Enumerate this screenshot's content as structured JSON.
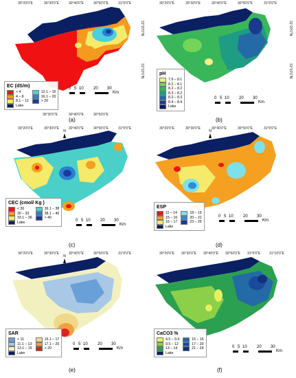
{
  "colors": {
    "lake": "#0b1f63",
    "mapblue": "#1a3a8c"
  },
  "panels": [
    {
      "id": "ec",
      "label": "(a)",
      "coords_top": [
        "30°20'0\"E",
        "30°30'0\"E",
        "30°40'0\"E",
        "30°50'0\"E",
        "31°0'0\"E"
      ],
      "coords_bottom": [
        "30°30'0\"E",
        "30°40'0\"E",
        "30°50'0\"E"
      ],
      "coords_right": [
        "31°20'0\"N",
        "31°10'0\"N"
      ],
      "legend": {
        "title": "EC (dS/m)",
        "items": [
          {
            "label": "< 4",
            "color": "#f01212"
          },
          {
            "label": "12.1 – 16",
            "color": "#4ad0e0"
          },
          {
            "label": "4 – 8",
            "color": "#f59a1f"
          },
          {
            "label": "16.1 – 20",
            "color": "#2a7fd4"
          },
          {
            "label": "8.1 – 12",
            "color": "#f5ea6a"
          },
          {
            "label": "> 20",
            "color": "#1a3a9c"
          },
          {
            "label": "Lake",
            "color": "#0b1f63"
          }
        ]
      },
      "scale": {
        "ticks": [
          "0",
          "5",
          "10",
          "20",
          "30"
        ],
        "unit": "Km"
      }
    },
    {
      "id": "ph",
      "label": "(b)",
      "coords_top": [
        "30°20'0\"E",
        "30°30'0\"E",
        "30°40'0\"E",
        "30°50'0\"E",
        "31°0'0\"E"
      ],
      "coords_bottom": [],
      "coords_right": [
        "31°20'0\"N",
        "31°10'0\"N"
      ],
      "legend": {
        "title": "pH",
        "items": [
          {
            "label": "7.9 – 8.1",
            "color": "#f3ef8a"
          },
          {
            "label": "8.2 – 8.1",
            "color": "#74d45a"
          },
          {
            "label": "8.2 – 8.2",
            "color": "#39b65a"
          },
          {
            "label": "8.3 – 8.2",
            "color": "#1f9c84"
          },
          {
            "label": "8.3 – 8.3",
            "color": "#236aa6"
          },
          {
            "label": "8.4 – 8.4",
            "color": "#1a3a8c"
          },
          {
            "label": "Lake",
            "color": "#0b1f63"
          }
        ]
      },
      "scale": {
        "ticks": [
          "0",
          "5",
          "10",
          "20",
          "30"
        ],
        "unit": "Km"
      }
    },
    {
      "id": "cec",
      "label": "(c)",
      "coords_top": [
        "30°20'0\"E",
        "30°30'0\"E",
        "30°40'0\"E",
        "30°50'0\"E",
        "31°0'0\"E"
      ],
      "coords_bottom": [],
      "coords_right": [],
      "legend": {
        "title": "CEC (cmol/ Kg )",
        "items": [
          {
            "label": "< 30",
            "color": "#f01212"
          },
          {
            "label": "36.1 – 38",
            "color": "#4ad0c8"
          },
          {
            "label": "30 – 33",
            "color": "#f5a020"
          },
          {
            "label": "38.1 – 40",
            "color": "#2a7fd4"
          },
          {
            "label": "33.1 – 36",
            "color": "#f5ea6a"
          },
          {
            "label": "> 40",
            "color": "#1a3a9c"
          },
          {
            "label": "Lake",
            "color": "#0b1f63"
          }
        ]
      },
      "scale": {
        "ticks": [
          "0",
          "5",
          "10",
          "20",
          "30"
        ],
        "unit": "Km"
      }
    },
    {
      "id": "esp",
      "label": "(d)",
      "coords_top": [
        "30°20'0\"E",
        "30°30'0\"E",
        "30°40'0\"E",
        "30°50'0\"E",
        "31°0'0\"E"
      ],
      "coords_bottom": [],
      "coords_right": [],
      "legend": {
        "title": "ESP",
        "items": [
          {
            "label": "11 – 14",
            "color": "#f01212"
          },
          {
            "label": "18 – 19",
            "color": "#7fe0e8"
          },
          {
            "label": "15 – 16",
            "color": "#f5a020"
          },
          {
            "label": "20 – 22",
            "color": "#2a8fd8"
          },
          {
            "label": "16 – 17",
            "color": "#f5ea6a"
          },
          {
            "label": "23 – 26",
            "color": "#1a3a9c"
          },
          {
            "label": "Lake",
            "color": "#0b1f63"
          }
        ]
      },
      "scale": {
        "ticks": [
          "0",
          "5",
          "10",
          "20",
          "30"
        ],
        "unit": "Km"
      }
    },
    {
      "id": "sar",
      "label": "(e)",
      "coords_top": [
        "30°20'0\"E",
        "30°30'0\"E",
        "30°40'0\"E",
        "30°50'0\"E",
        "31°0'0\"E"
      ],
      "coords_bottom": [],
      "coords_right": [],
      "legend": {
        "title": "SAR",
        "items": [
          {
            "label": "< 11",
            "color": "#6aa0d8"
          },
          {
            "label": "15.1 – 17",
            "color": "#f0d88a"
          },
          {
            "label": "11.1 – 13",
            "color": "#a8c8e6"
          },
          {
            "label": "17.1 – 20",
            "color": "#f5a040"
          },
          {
            "label": "13.1 – 15",
            "color": "#f3f0c0"
          },
          {
            "label": "> 20",
            "color": "#e02020"
          },
          {
            "label": "Lake",
            "color": "#0b1f63"
          }
        ]
      },
      "scale": {
        "ticks": [
          "0",
          "5",
          "10",
          "20",
          "30"
        ],
        "unit": "Km"
      }
    },
    {
      "id": "caco3",
      "label": "(f)",
      "coords_top": [
        "30°20'0\"E",
        "30°30'0\"E",
        "30°40'0\"E",
        "30°50'0\"E",
        "31°0'0\"E",
        "31°10'0\"E"
      ],
      "coords_bottom": [],
      "coords_right": [],
      "legend": {
        "title": "CaCO3 %",
        "items": [
          {
            "label": "4.5 – 9.4",
            "color": "#e8f060"
          },
          {
            "label": "15 – 16",
            "color": "#236aa6"
          },
          {
            "label": "9.5 – 12",
            "color": "#8cd04a"
          },
          {
            "label": "17 – 20",
            "color": "#1a4a9c"
          },
          {
            "label": "13 – 14",
            "color": "#2aa050"
          },
          {
            "label": "21 – 24",
            "color": "#12307a"
          },
          {
            "label": "Lake",
            "color": "#0b1f63"
          }
        ]
      },
      "scale": {
        "ticks": [
          "0",
          "5",
          "10",
          "20",
          "30"
        ],
        "unit": "Km"
      }
    }
  ],
  "north_label": "N"
}
